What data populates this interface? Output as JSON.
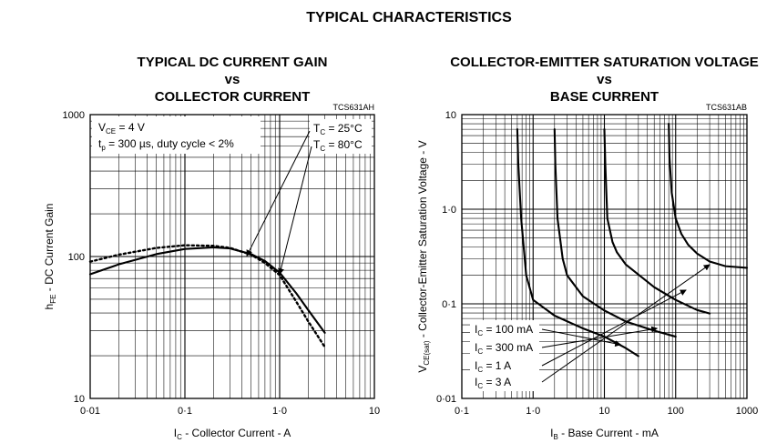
{
  "page": {
    "heading": "TYPICAL CHARACTERISTICS"
  },
  "chart_data": [
    {
      "type": "line",
      "title": [
        "TYPICAL DC CURRENT GAIN",
        "vs",
        "COLLECTOR CURRENT"
      ],
      "figure_code": "TCS631AH",
      "xlabel": "I_C - Collector Current - A",
      "ylabel": "h_FE - DC Current Gain",
      "xscale": "log",
      "yscale": "log",
      "xlim": [
        0.01,
        10
      ],
      "ylim": [
        10,
        1000
      ],
      "x_ticks": [
        0.01,
        0.1,
        1,
        10
      ],
      "x_tick_labels": [
        "0·01",
        "0·1",
        "1·0",
        "10"
      ],
      "y_ticks": [
        10,
        100,
        1000
      ],
      "y_tick_labels": [
        "10",
        "100",
        "1000"
      ],
      "grid": true,
      "conditions": [
        {
          "main": "V",
          "sub": "CE",
          "rest": " = 4 V"
        },
        {
          "main": "t",
          "sub": "p",
          "rest": " = 300 µs, duty cycle < 2%"
        }
      ],
      "series": [
        {
          "name": "T_C = 25°C",
          "label_main": "T",
          "label_sub": "C",
          "label_rest": " = 25°C",
          "style": "solid",
          "x": [
            0.01,
            0.02,
            0.05,
            0.1,
            0.2,
            0.3,
            0.5,
            0.7,
            1.0,
            1.5,
            2.0,
            3.0
          ],
          "y": [
            75,
            88,
            104,
            113,
            116,
            114,
            104,
            93,
            77,
            55,
            42,
            29
          ]
        },
        {
          "name": "T_C = 80°C",
          "label_main": "T",
          "label_sub": "C",
          "label_rest": " = 80°C",
          "style": "dotted",
          "x": [
            0.01,
            0.02,
            0.05,
            0.1,
            0.2,
            0.3,
            0.5,
            0.7,
            1.0,
            1.5,
            2.0,
            3.0
          ],
          "y": [
            92,
            103,
            115,
            120,
            119,
            115,
            103,
            90,
            74,
            48,
            35,
            23
          ]
        }
      ]
    },
    {
      "type": "line",
      "title": [
        "COLLECTOR-EMITTER SATURATION VOLTAGE",
        "vs",
        "BASE CURRENT"
      ],
      "figure_code": "TCS631AB",
      "xlabel": "I_B - Base Current - mA",
      "ylabel": "V_CE(sat) - Collector-Emitter Saturation Voltage - V",
      "xscale": "log",
      "yscale": "log",
      "xlim": [
        0.1,
        1000
      ],
      "ylim": [
        0.01,
        10
      ],
      "x_ticks": [
        0.1,
        1,
        10,
        100,
        1000
      ],
      "x_tick_labels": [
        "0·1",
        "1·0",
        "10",
        "100",
        "1000"
      ],
      "y_ticks": [
        0.01,
        0.1,
        1,
        10
      ],
      "y_tick_labels": [
        "0·01",
        "0·1",
        "1·0",
        "10"
      ],
      "grid": true,
      "series": [
        {
          "name": "I_C = 100 mA",
          "label_main": "I",
          "label_sub": "C",
          "label_rest": " = 100 mA",
          "x": [
            0.6,
            0.62,
            0.68,
            0.8,
            1.0,
            2.0,
            5.0,
            10,
            20,
            30
          ],
          "y": [
            7,
            3,
            0.8,
            0.2,
            0.11,
            0.075,
            0.055,
            0.045,
            0.034,
            0.028
          ]
        },
        {
          "name": "I_C = 300 mA",
          "label_main": "I",
          "label_sub": "C",
          "label_rest": " = 300 mA",
          "x": [
            2.0,
            2.05,
            2.2,
            2.6,
            3.0,
            5.0,
            10,
            20,
            50,
            100
          ],
          "y": [
            7,
            3,
            0.8,
            0.3,
            0.2,
            0.12,
            0.085,
            0.065,
            0.052,
            0.045
          ]
        },
        {
          "name": "I_C = 1 A",
          "label_main": "I",
          "label_sub": "C",
          "label_rest": " = 1 A",
          "x": [
            10,
            10.3,
            11,
            13,
            15,
            20,
            50,
            100,
            200,
            300
          ],
          "y": [
            7,
            3,
            0.8,
            0.45,
            0.35,
            0.26,
            0.15,
            0.11,
            0.086,
            0.079
          ]
        },
        {
          "name": "I_C = 3 A",
          "label_main": "I",
          "label_sub": "C",
          "label_rest": " = 3 A",
          "x": [
            80,
            82,
            88,
            100,
            120,
            150,
            200,
            300,
            500,
            1000
          ],
          "y": [
            8,
            3.5,
            1.5,
            0.8,
            0.55,
            0.42,
            0.34,
            0.28,
            0.25,
            0.24
          ]
        }
      ]
    }
  ]
}
